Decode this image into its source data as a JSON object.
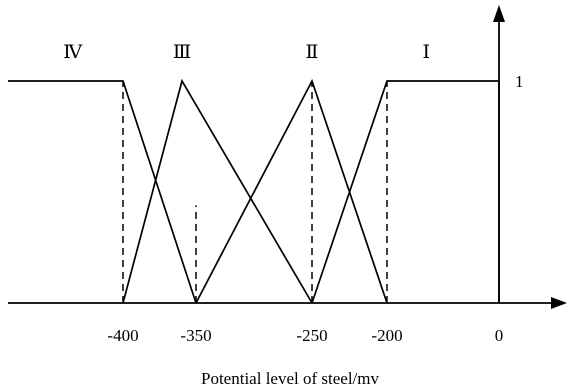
{
  "chart_data": {
    "type": "line",
    "xlabel": "Potential level of steel/mv",
    "x_ticks": [
      "-400",
      "-350",
      "-250",
      "-200",
      "0"
    ],
    "y_ticks": [
      "1"
    ],
    "ylim": [
      0,
      1
    ],
    "grid": false,
    "region_labels": [
      {
        "label": "Ⅳ",
        "x": -435
      },
      {
        "label": "Ⅲ",
        "x": -362
      },
      {
        "label": "Ⅱ",
        "x": -250
      },
      {
        "label": "Ⅰ",
        "x": -130
      }
    ],
    "series": [
      {
        "points": [
          [
            -480,
            1
          ],
          [
            -400,
            1
          ],
          [
            -350,
            0
          ]
        ]
      },
      {
        "points": [
          [
            -400,
            0
          ],
          [
            -362,
            1
          ],
          [
            -250,
            0
          ]
        ]
      },
      {
        "points": [
          [
            -350,
            0
          ],
          [
            -250,
            1
          ],
          [
            -200,
            0
          ]
        ]
      },
      {
        "points": [
          [
            -250,
            0
          ],
          [
            -200,
            1
          ],
          [
            0,
            1
          ],
          [
            0,
            0
          ]
        ]
      }
    ],
    "dashed_verticals": [
      {
        "x": -400,
        "y_top": 1
      },
      {
        "x": -350,
        "y_top": 0.44
      },
      {
        "x": -250,
        "y_top": 1
      },
      {
        "x": -200,
        "y_top": 1
      }
    ]
  }
}
